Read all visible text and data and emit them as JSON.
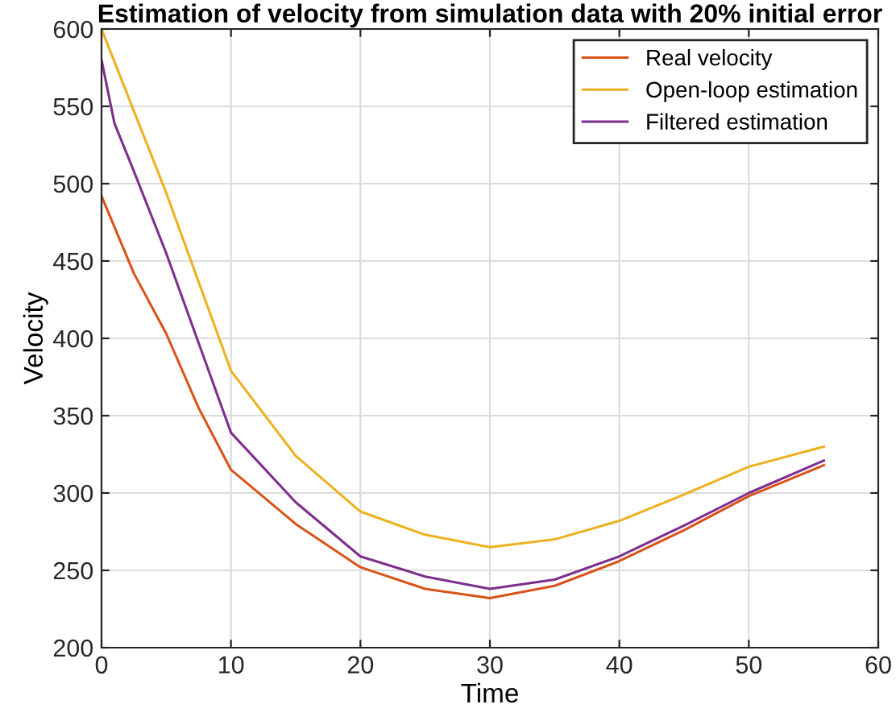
{
  "chart_data": {
    "type": "line",
    "title": "Estimation of velocity from simulation data with 20% initial error",
    "xlabel": "Time",
    "ylabel": "Velocity",
    "xlim": [
      0,
      60
    ],
    "ylim": [
      200,
      600
    ],
    "xticks": [
      0,
      10,
      20,
      30,
      40,
      50,
      60
    ],
    "yticks": [
      200,
      250,
      300,
      350,
      400,
      450,
      500,
      550,
      600
    ],
    "grid": true,
    "legend": "top right",
    "marker": "none",
    "line_style": "solid",
    "series": [
      {
        "name": "Real velocity",
        "color": "#d95319",
        "x": [
          0,
          2.5,
          5,
          7.5,
          10,
          15,
          20,
          25,
          30,
          35,
          40,
          45,
          50,
          55.8
        ],
        "values": [
          492,
          442,
          403,
          355,
          315,
          280,
          252,
          238,
          232,
          240,
          256,
          276,
          298,
          318
        ]
      },
      {
        "name": "Open-loop estimation",
        "color": "#edb120",
        "x": [
          0,
          5,
          10,
          15,
          20,
          25,
          30,
          35,
          40,
          45,
          50,
          55.8
        ],
        "values": [
          600,
          494,
          379,
          324,
          288,
          273,
          265,
          270,
          282,
          299,
          317,
          330
        ]
      },
      {
        "name": "Filtered estimation",
        "color": "#7e2f8e",
        "x": [
          0,
          1,
          2.5,
          5,
          7.5,
          10,
          15,
          20,
          25,
          30,
          35,
          40,
          45,
          50,
          55.8
        ],
        "values": [
          580,
          539,
          508,
          455,
          397,
          339,
          294,
          259,
          246,
          238,
          244,
          259,
          279,
          300,
          321
        ]
      }
    ]
  }
}
